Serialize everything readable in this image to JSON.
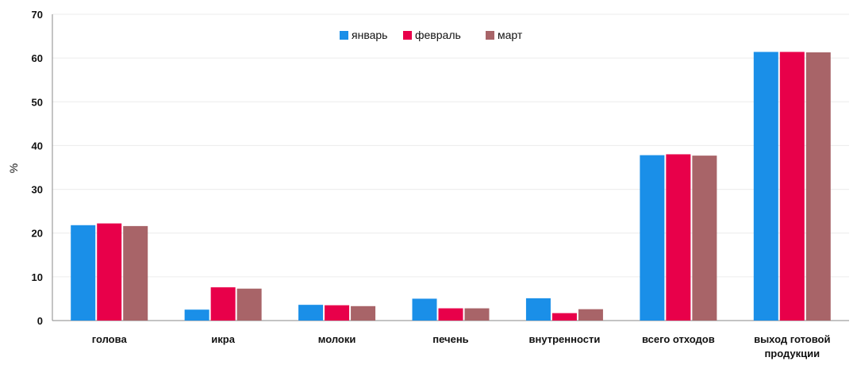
{
  "chart_data": {
    "type": "bar",
    "title": "",
    "xlabel": "",
    "ylabel": "%",
    "ylim": [
      0,
      70
    ],
    "yticks": [
      0,
      10,
      20,
      30,
      40,
      50,
      60,
      70
    ],
    "grid": true,
    "legend_position": "top-center",
    "categories": [
      [
        "голова"
      ],
      [
        "икра"
      ],
      [
        "молоки"
      ],
      [
        "печень"
      ],
      [
        "внутренности"
      ],
      [
        "всего отходов"
      ],
      [
        "выход готовой",
        "продукции"
      ]
    ],
    "series": [
      {
        "name": "январь",
        "color": "#1a8fe8",
        "values": [
          21.8,
          2.5,
          3.6,
          5.0,
          5.1,
          37.8,
          61.4
        ]
      },
      {
        "name": "февраль",
        "color": "#e8004a",
        "values": [
          22.2,
          7.6,
          3.5,
          2.8,
          1.7,
          38.0,
          61.4
        ]
      },
      {
        "name": "март",
        "color": "#a86468",
        "values": [
          21.6,
          7.3,
          3.3,
          2.8,
          2.6,
          37.7,
          61.3
        ]
      }
    ]
  }
}
